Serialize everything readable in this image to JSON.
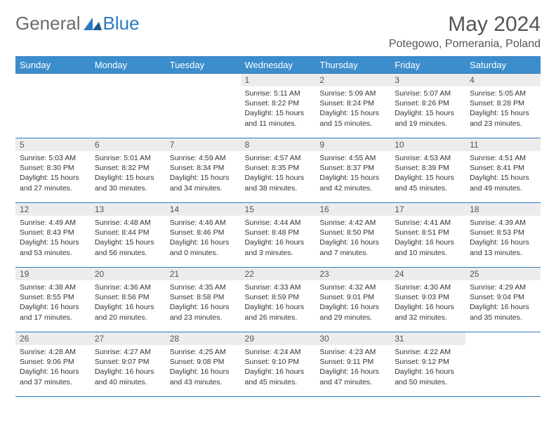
{
  "brand": {
    "part1": "General",
    "part2": "Blue"
  },
  "title": "May 2024",
  "location": "Potegowo, Pomerania, Poland",
  "colors": {
    "header_bg": "#3c8dcc",
    "border": "#2d7bc0",
    "daybar": "#ececec",
    "text": "#333333",
    "brand_gray": "#6b6b6b",
    "brand_blue": "#2d7bc0"
  },
  "weekdays": [
    "Sunday",
    "Monday",
    "Tuesday",
    "Wednesday",
    "Thursday",
    "Friday",
    "Saturday"
  ],
  "weeks": [
    [
      null,
      null,
      null,
      {
        "n": "1",
        "sunrise": "5:11 AM",
        "sunset": "8:22 PM",
        "daylight": "15 hours and 11 minutes."
      },
      {
        "n": "2",
        "sunrise": "5:09 AM",
        "sunset": "8:24 PM",
        "daylight": "15 hours and 15 minutes."
      },
      {
        "n": "3",
        "sunrise": "5:07 AM",
        "sunset": "8:26 PM",
        "daylight": "15 hours and 19 minutes."
      },
      {
        "n": "4",
        "sunrise": "5:05 AM",
        "sunset": "8:28 PM",
        "daylight": "15 hours and 23 minutes."
      }
    ],
    [
      {
        "n": "5",
        "sunrise": "5:03 AM",
        "sunset": "8:30 PM",
        "daylight": "15 hours and 27 minutes."
      },
      {
        "n": "6",
        "sunrise": "5:01 AM",
        "sunset": "8:32 PM",
        "daylight": "15 hours and 30 minutes."
      },
      {
        "n": "7",
        "sunrise": "4:59 AM",
        "sunset": "8:34 PM",
        "daylight": "15 hours and 34 minutes."
      },
      {
        "n": "8",
        "sunrise": "4:57 AM",
        "sunset": "8:35 PM",
        "daylight": "15 hours and 38 minutes."
      },
      {
        "n": "9",
        "sunrise": "4:55 AM",
        "sunset": "8:37 PM",
        "daylight": "15 hours and 42 minutes."
      },
      {
        "n": "10",
        "sunrise": "4:53 AM",
        "sunset": "8:39 PM",
        "daylight": "15 hours and 45 minutes."
      },
      {
        "n": "11",
        "sunrise": "4:51 AM",
        "sunset": "8:41 PM",
        "daylight": "15 hours and 49 minutes."
      }
    ],
    [
      {
        "n": "12",
        "sunrise": "4:49 AM",
        "sunset": "8:43 PM",
        "daylight": "15 hours and 53 minutes."
      },
      {
        "n": "13",
        "sunrise": "4:48 AM",
        "sunset": "8:44 PM",
        "daylight": "15 hours and 56 minutes."
      },
      {
        "n": "14",
        "sunrise": "4:46 AM",
        "sunset": "8:46 PM",
        "daylight": "16 hours and 0 minutes."
      },
      {
        "n": "15",
        "sunrise": "4:44 AM",
        "sunset": "8:48 PM",
        "daylight": "16 hours and 3 minutes."
      },
      {
        "n": "16",
        "sunrise": "4:42 AM",
        "sunset": "8:50 PM",
        "daylight": "16 hours and 7 minutes."
      },
      {
        "n": "17",
        "sunrise": "4:41 AM",
        "sunset": "8:51 PM",
        "daylight": "16 hours and 10 minutes."
      },
      {
        "n": "18",
        "sunrise": "4:39 AM",
        "sunset": "8:53 PM",
        "daylight": "16 hours and 13 minutes."
      }
    ],
    [
      {
        "n": "19",
        "sunrise": "4:38 AM",
        "sunset": "8:55 PM",
        "daylight": "16 hours and 17 minutes."
      },
      {
        "n": "20",
        "sunrise": "4:36 AM",
        "sunset": "8:56 PM",
        "daylight": "16 hours and 20 minutes."
      },
      {
        "n": "21",
        "sunrise": "4:35 AM",
        "sunset": "8:58 PM",
        "daylight": "16 hours and 23 minutes."
      },
      {
        "n": "22",
        "sunrise": "4:33 AM",
        "sunset": "8:59 PM",
        "daylight": "16 hours and 26 minutes."
      },
      {
        "n": "23",
        "sunrise": "4:32 AM",
        "sunset": "9:01 PM",
        "daylight": "16 hours and 29 minutes."
      },
      {
        "n": "24",
        "sunrise": "4:30 AM",
        "sunset": "9:03 PM",
        "daylight": "16 hours and 32 minutes."
      },
      {
        "n": "25",
        "sunrise": "4:29 AM",
        "sunset": "9:04 PM",
        "daylight": "16 hours and 35 minutes."
      }
    ],
    [
      {
        "n": "26",
        "sunrise": "4:28 AM",
        "sunset": "9:06 PM",
        "daylight": "16 hours and 37 minutes."
      },
      {
        "n": "27",
        "sunrise": "4:27 AM",
        "sunset": "9:07 PM",
        "daylight": "16 hours and 40 minutes."
      },
      {
        "n": "28",
        "sunrise": "4:25 AM",
        "sunset": "9:08 PM",
        "daylight": "16 hours and 43 minutes."
      },
      {
        "n": "29",
        "sunrise": "4:24 AM",
        "sunset": "9:10 PM",
        "daylight": "16 hours and 45 minutes."
      },
      {
        "n": "30",
        "sunrise": "4:23 AM",
        "sunset": "9:11 PM",
        "daylight": "16 hours and 47 minutes."
      },
      {
        "n": "31",
        "sunrise": "4:22 AM",
        "sunset": "9:12 PM",
        "daylight": "16 hours and 50 minutes."
      },
      null
    ]
  ],
  "labels": {
    "sunrise": "Sunrise:",
    "sunset": "Sunset:",
    "daylight": "Daylight:"
  }
}
